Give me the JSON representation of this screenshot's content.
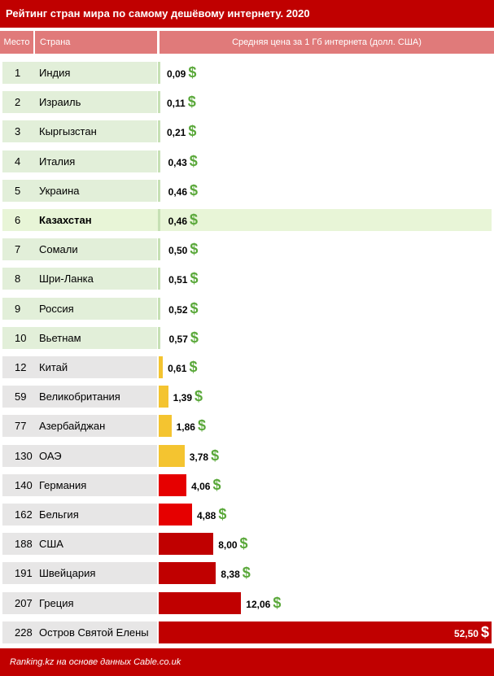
{
  "title": "Рейтинг стран мира по самому дешёвому интернету. 2020",
  "header": {
    "rank": "Место",
    "country": "Страна",
    "price": "Средняя цена за 1 Гб интернета (долл. США)"
  },
  "footer": "Ranking.kz на основе данных Cable.co.uk",
  "currency_symbol": "$",
  "colors": {
    "title_bg": "#c00000",
    "header_bg": "#e07a7a",
    "row_green": "#e2efd9",
    "row_gray": "#e7e6e6",
    "bar_green": "#c6e0b4",
    "bar_yellow": "#f4c430",
    "bar_red": "#e60000",
    "bar_darkred": "#c00000",
    "dollar_green": "#5aa83a"
  },
  "chart_data": {
    "type": "bar",
    "orientation": "horizontal",
    "title": "Рейтинг стран мира по самому дешёвому интернету. 2020",
    "xlabel": "Средняя цена за 1 Гб интернета (долл. США)",
    "rows": [
      {
        "rank": "1",
        "country": "Индия",
        "value": 0.09,
        "label": "0,09",
        "tier": "green"
      },
      {
        "rank": "2",
        "country": "Израиль",
        "value": 0.11,
        "label": "0,11",
        "tier": "green"
      },
      {
        "rank": "3",
        "country": "Кыргызстан",
        "value": 0.21,
        "label": "0,21",
        "tier": "green"
      },
      {
        "rank": "4",
        "country": "Италия",
        "value": 0.43,
        "label": "0,43",
        "tier": "green"
      },
      {
        "rank": "5",
        "country": "Украина",
        "value": 0.46,
        "label": "0,46",
        "tier": "green"
      },
      {
        "rank": "6",
        "country": "Казахстан",
        "value": 0.46,
        "label": "0,46",
        "tier": "green",
        "highlight": true
      },
      {
        "rank": "7",
        "country": "Сомали",
        "value": 0.5,
        "label": "0,50",
        "tier": "green"
      },
      {
        "rank": "8",
        "country": "Шри-Ланка",
        "value": 0.51,
        "label": "0,51",
        "tier": "green"
      },
      {
        "rank": "9",
        "country": "Россия",
        "value": 0.52,
        "label": "0,52",
        "tier": "green"
      },
      {
        "rank": "10",
        "country": "Вьетнам",
        "value": 0.57,
        "label": "0,57",
        "tier": "green"
      },
      {
        "rank": "12",
        "country": "Китай",
        "value": 0.61,
        "label": "0,61",
        "tier": "yellow"
      },
      {
        "rank": "59",
        "country": "Великобритания",
        "value": 1.39,
        "label": "1,39",
        "tier": "yellow"
      },
      {
        "rank": "77",
        "country": "Азербайджан",
        "value": 1.86,
        "label": "1,86",
        "tier": "yellow"
      },
      {
        "rank": "130",
        "country": "ОАЭ",
        "value": 3.78,
        "label": "3,78",
        "tier": "yellow"
      },
      {
        "rank": "140",
        "country": "Германия",
        "value": 4.06,
        "label": "4,06",
        "tier": "red"
      },
      {
        "rank": "162",
        "country": "Бельгия",
        "value": 4.88,
        "label": "4,88",
        "tier": "red"
      },
      {
        "rank": "188",
        "country": "США",
        "value": 8.0,
        "label": "8,00",
        "tier": "darkred"
      },
      {
        "rank": "191",
        "country": "Швейцария",
        "value": 8.38,
        "label": "8,38",
        "tier": "darkred"
      },
      {
        "rank": "207",
        "country": "Греция",
        "value": 12.06,
        "label": "12,06",
        "tier": "darkred"
      },
      {
        "rank": "228",
        "country": "Остров Святой Елены",
        "value": 52.5,
        "label": "52,50",
        "tier": "darkred"
      }
    ]
  }
}
